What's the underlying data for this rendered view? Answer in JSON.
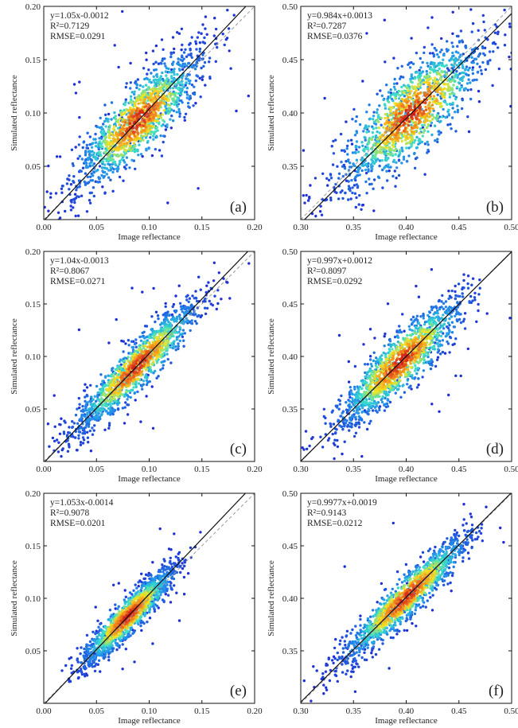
{
  "chart_data": [
    {
      "type": "scatter",
      "panel": "(a)",
      "xlabel": "Image reflectance",
      "ylabel": "Simulated reflectance",
      "xlim": [
        0.0,
        0.2
      ],
      "ylim": [
        0.0,
        0.2
      ],
      "xticks": [
        "0.00",
        "0.05",
        "0.10",
        "0.15",
        "0.20"
      ],
      "yticks": [
        "0.05",
        "0.10",
        "0.15",
        "0.20"
      ],
      "equation": "y=1.05x-0.0012",
      "r2_label": "R²=0.7129",
      "rmse_label": "RMSE=0.0291",
      "fit": {
        "slope": 1.05,
        "intercept": -0.0012
      },
      "density": {
        "center": 0.09,
        "spread": 0.028,
        "scatter": 0.014,
        "min": 0.0,
        "max": 0.2
      },
      "one_to_one_line": true
    },
    {
      "type": "scatter",
      "panel": "(b)",
      "xlabel": "Image reflectance",
      "ylabel": "Simulated reflectance",
      "xlim": [
        0.3,
        0.5
      ],
      "ylim": [
        0.3,
        0.5
      ],
      "xticks": [
        "0.30",
        "0.35",
        "0.40",
        "0.45",
        "0.50"
      ],
      "yticks": [
        "0.35",
        "0.40",
        "0.45",
        "0.50"
      ],
      "equation": "y=0.984x+0.0013",
      "r2_label": "R²=0.7287",
      "rmse_label": "RMSE=0.0376",
      "fit": {
        "slope": 0.984,
        "intercept": 0.0013
      },
      "density": {
        "center": 0.405,
        "spread": 0.032,
        "scatter": 0.017,
        "min": 0.3,
        "max": 0.5
      },
      "one_to_one_line": true
    },
    {
      "type": "scatter",
      "panel": "(c)",
      "xlabel": "Image reflectance",
      "ylabel": "Simulated reflectance",
      "xlim": [
        0.0,
        0.2
      ],
      "ylim": [
        0.0,
        0.2
      ],
      "xticks": [
        "0.00",
        "0.05",
        "0.10",
        "0.15",
        "0.20"
      ],
      "yticks": [
        "0.05",
        "0.10",
        "0.15",
        "0.20"
      ],
      "equation": "y=1.04x-0.0013",
      "r2_label": "R²=0.8067",
      "rmse_label": "RMSE=0.0271",
      "fit": {
        "slope": 1.04,
        "intercept": -0.0013
      },
      "density": {
        "center": 0.088,
        "spread": 0.03,
        "scatter": 0.009,
        "min": 0.0,
        "max": 0.2
      },
      "one_to_one_line": true
    },
    {
      "type": "scatter",
      "panel": "(d)",
      "xlabel": "Image reflectance",
      "ylabel": "Simulated reflectance",
      "xlim": [
        0.3,
        0.5
      ],
      "ylim": [
        0.3,
        0.5
      ],
      "xticks": [
        "0.30",
        "0.35",
        "0.40",
        "0.45",
        "0.50"
      ],
      "yticks": [
        "0.35",
        "0.40",
        "0.45",
        "0.50"
      ],
      "equation": "y=0.997x+0.0012",
      "r2_label": "R²=0.8097",
      "rmse_label": "RMSE=0.0292",
      "fit": {
        "slope": 0.997,
        "intercept": 0.0012
      },
      "density": {
        "center": 0.395,
        "spread": 0.03,
        "scatter": 0.011,
        "min": 0.3,
        "max": 0.465
      },
      "one_to_one_line": true
    },
    {
      "type": "scatter",
      "panel": "(e)",
      "xlabel": "Image reflectance",
      "ylabel": "Simulated reflectance",
      "xlim": [
        0.0,
        0.2
      ],
      "ylim": [
        0.0,
        0.2
      ],
      "xticks": [
        "0.00",
        "0.05",
        "0.10",
        "0.15",
        "0.20"
      ],
      "yticks": [
        "0.05",
        "0.10",
        "0.15",
        "0.20"
      ],
      "equation": "y=1.053x-0.0014",
      "r2_label": "R²=0.9078",
      "rmse_label": "RMSE=0.0201",
      "fit": {
        "slope": 1.053,
        "intercept": -0.0014
      },
      "density": {
        "center": 0.08,
        "spread": 0.022,
        "scatter": 0.007,
        "min": 0.025,
        "max": 0.145
      },
      "one_to_one_line": true
    },
    {
      "type": "scatter",
      "panel": "(f)",
      "xlabel": "Image reflectance",
      "ylabel": "Simulated reflectance",
      "xlim": [
        0.3,
        0.5
      ],
      "ylim": [
        0.3,
        0.5
      ],
      "xticks": [
        "0.30",
        "0.35",
        "0.40",
        "0.45",
        "0.50"
      ],
      "yticks": [
        "0.35",
        "0.40",
        "0.45",
        "0.50"
      ],
      "equation": "y=0.9977x+0.0019",
      "r2_label": "R²=0.9143",
      "rmse_label": "RMSE=0.0212",
      "fit": {
        "slope": 0.9977,
        "intercept": 0.0019
      },
      "density": {
        "center": 0.4,
        "spread": 0.03,
        "scatter": 0.008,
        "min": 0.305,
        "max": 0.465
      },
      "one_to_one_line": true
    }
  ],
  "colors": {
    "low_density": "#1f2fd6",
    "mid_density": "#39e0c8",
    "high_density": "#f2e421",
    "peak_density": "#d0161b",
    "fit_line": "#111111",
    "one_to_one_line": "#9a9a9a"
  }
}
